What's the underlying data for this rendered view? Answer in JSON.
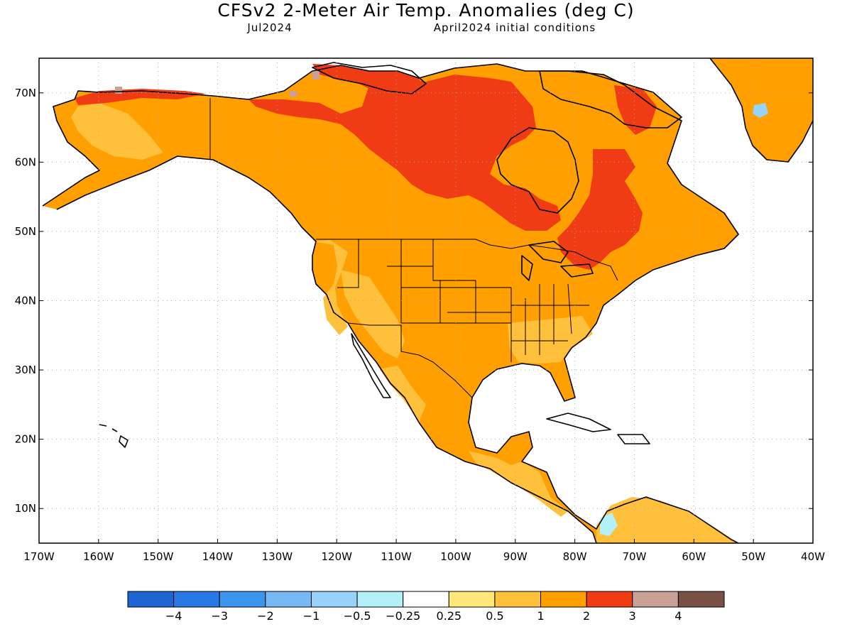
{
  "header": {
    "title": "CFSv2 2-Meter Air Temp. Anomalies (deg C)",
    "valid_month": "Jul2024",
    "init": "April2024 initial conditions"
  },
  "map": {
    "lon_range": [
      -170,
      -40
    ],
    "lat_range": [
      5,
      75
    ],
    "lat_ticks": [
      {
        "value": 70,
        "label": "70N"
      },
      {
        "value": 60,
        "label": "60N"
      },
      {
        "value": 50,
        "label": "50N"
      },
      {
        "value": 40,
        "label": "40N"
      },
      {
        "value": 30,
        "label": "30N"
      },
      {
        "value": 20,
        "label": "20N"
      },
      {
        "value": 10,
        "label": "10N"
      }
    ],
    "lon_ticks": [
      {
        "value": -170,
        "label": "170W"
      },
      {
        "value": -160,
        "label": "160W"
      },
      {
        "value": -150,
        "label": "150W"
      },
      {
        "value": -140,
        "label": "140W"
      },
      {
        "value": -130,
        "label": "130W"
      },
      {
        "value": -120,
        "label": "120W"
      },
      {
        "value": -110,
        "label": "110W"
      },
      {
        "value": -100,
        "label": "100W"
      },
      {
        "value": -90,
        "label": "90W"
      },
      {
        "value": -80,
        "label": "80W"
      },
      {
        "value": -70,
        "label": "70W"
      },
      {
        "value": -60,
        "label": "60W"
      },
      {
        "value": -50,
        "label": "50W"
      },
      {
        "value": -40,
        "label": "40W"
      }
    ],
    "grid": "dotted"
  },
  "colorbar": {
    "colors": [
      "#1e64d2",
      "#2878e6",
      "#3c96f0",
      "#78b9f5",
      "#96d2fa",
      "#b4f0fa",
      "#ffffff",
      "#ffe878",
      "#ffc03c",
      "#ffa000",
      "#f03c14",
      "#c8a096",
      "#785046"
    ],
    "labels": [
      "-4",
      "-3",
      "-2",
      "-1",
      "-0.5",
      "-0.25",
      "0.25",
      "0.5",
      "1",
      "2",
      "3",
      "4"
    ]
  },
  "anomaly_regions": [
    {
      "name": "north-america-land",
      "category": "1 to 2",
      "color": "#ffa000"
    },
    {
      "name": "pacific-coast-us",
      "category": "0.5 to 1",
      "color": "#ffc03c"
    },
    {
      "name": "desert-southwest",
      "category": "0.5 to 1",
      "color": "#ffc03c"
    },
    {
      "name": "southeast-us",
      "category": "0.5 to 1",
      "color": "#ffc03c"
    },
    {
      "name": "northern-mexico-west",
      "category": "0.5 to 1",
      "color": "#ffc03c"
    },
    {
      "name": "central-america",
      "category": "0.5 to 1",
      "color": "#ffc03c"
    },
    {
      "name": "central-canada-arctic",
      "category": "2 to 3",
      "color": "#f03c14"
    },
    {
      "name": "quebec-labrador",
      "category": "2 to 3",
      "color": "#f03c14"
    },
    {
      "name": "arctic-islands-north",
      "category": "2 to 3",
      "color": "#f03c14"
    },
    {
      "name": "north-slope-alaska",
      "category": "2 to 3",
      "color": "#f03c14"
    },
    {
      "name": "alaska-interior",
      "category": "1 to 2",
      "color": "#ffa000"
    },
    {
      "name": "greenland",
      "category": "1 to 2",
      "color": "#ffa000"
    },
    {
      "name": "baffin-island",
      "category": "1 to 2",
      "color": "#ffa000"
    },
    {
      "name": "northern-south-america",
      "category": "0.5 to 1",
      "color": "#ffc03c"
    },
    {
      "name": "colombia-coast-cold",
      "category": "-0.5 to -0.25",
      "color": "#b4f0fa"
    },
    {
      "name": "greenland-cold-spot",
      "category": "-1 to -0.5",
      "color": "#96d2fa"
    },
    {
      "name": "arctic-warm-spots",
      "category": "3 to 4",
      "color": "#c8a096"
    }
  ]
}
